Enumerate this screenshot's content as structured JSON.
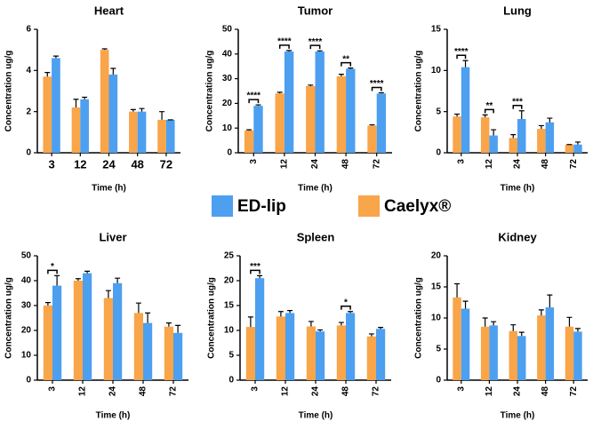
{
  "legend": [
    {
      "name": "ED-lip",
      "color": "#4d9ff0"
    },
    {
      "name": "Caelyx®",
      "color": "#f9a54a"
    }
  ],
  "chart_data": [
    {
      "type": "bar",
      "title": "Heart",
      "xlabel": "Time (h)",
      "ylabel": "Concentration ug/g",
      "categories": [
        "3",
        "12",
        "24",
        "48",
        "72"
      ],
      "ylim": [
        0,
        6
      ],
      "yticks": [
        0,
        2,
        4,
        6
      ],
      "series": [
        {
          "values": [
            4.6,
            2.6,
            3.8,
            2.0,
            1.6
          ],
          "errors": [
            0.1,
            0.1,
            0.3,
            0.15,
            0
          ]
        },
        {
          "values": [
            3.7,
            2.2,
            5.0,
            2.0,
            1.6
          ],
          "errors": [
            0.2,
            0.4,
            0.05,
            0.1,
            0.4
          ]
        }
      ],
      "significance": [
        null,
        null,
        null,
        null,
        null
      ]
    },
    {
      "type": "bar",
      "title": "Tumor",
      "xlabel": "Time (h)",
      "ylabel": "Concentration ug/g",
      "categories": [
        "3",
        "12",
        "24",
        "48",
        "72"
      ],
      "ylim": [
        0,
        50
      ],
      "yticks": [
        0,
        10,
        20,
        30,
        40,
        50
      ],
      "series": [
        {
          "values": [
            19,
            41,
            41,
            34,
            24
          ],
          "errors": [
            0.4,
            0.4,
            0.3,
            0.3,
            0.3
          ]
        },
        {
          "values": [
            9,
            24,
            27,
            31,
            11
          ],
          "errors": [
            0.3,
            0.5,
            0.4,
            0.8,
            0.3
          ]
        }
      ],
      "significance": [
        "****",
        "****",
        "****",
        "**",
        "****"
      ]
    },
    {
      "type": "bar",
      "title": "Lung",
      "xlabel": "Time (h)",
      "ylabel": "Concentration ug/g",
      "categories": [
        "3",
        "12",
        "24",
        "48",
        "72"
      ],
      "ylim": [
        0,
        15
      ],
      "yticks": [
        0,
        5,
        10,
        15
      ],
      "series": [
        {
          "values": [
            10.4,
            2.1,
            4.1,
            3.7,
            1.0
          ],
          "errors": [
            0.8,
            0.7,
            1.0,
            0.5,
            0.3
          ]
        },
        {
          "values": [
            4.4,
            4.3,
            1.8,
            2.9,
            1.0
          ],
          "errors": [
            0.3,
            0.3,
            0.4,
            0.4,
            0
          ]
        }
      ],
      "significance": [
        "****",
        "**",
        "***",
        null,
        null
      ]
    },
    {
      "type": "bar",
      "title": "Liver",
      "xlabel": "Time (h)",
      "ylabel": "Concentration ug/g",
      "categories": [
        "3",
        "12",
        "24",
        "48",
        "72"
      ],
      "ylim": [
        0,
        50
      ],
      "yticks": [
        0,
        10,
        20,
        30,
        40,
        50
      ],
      "series": [
        {
          "values": [
            38,
            43,
            39,
            23,
            19
          ],
          "errors": [
            4,
            0.8,
            2,
            4,
            3
          ]
        },
        {
          "values": [
            30,
            40,
            33,
            27,
            21.5
          ],
          "errors": [
            1.2,
            0.8,
            3,
            4,
            1.5
          ]
        }
      ],
      "significance": [
        "*",
        null,
        null,
        null,
        null
      ]
    },
    {
      "type": "bar",
      "title": "Spleen",
      "xlabel": "Time (h)",
      "ylabel": "Concentration ug/g",
      "categories": [
        "3",
        "12",
        "24",
        "48",
        "72"
      ],
      "ylim": [
        0,
        25
      ],
      "yticks": [
        0,
        5,
        10,
        15,
        20,
        25
      ],
      "series": [
        {
          "values": [
            20.5,
            13.5,
            9.8,
            13.5,
            10.3
          ],
          "errors": [
            0.5,
            0.5,
            0.3,
            0.3,
            0.3
          ]
        },
        {
          "values": [
            10.7,
            12.8,
            10.8,
            11.0,
            8.8
          ],
          "errors": [
            2,
            1,
            1,
            0.6,
            0.5
          ]
        }
      ],
      "significance": [
        "***",
        null,
        null,
        "*",
        null
      ]
    },
    {
      "type": "bar",
      "title": "Kidney",
      "xlabel": "Time (h)",
      "ylabel": "Concentration ug/g",
      "categories": [
        "3",
        "12",
        "24",
        "48",
        "72"
      ],
      "ylim": [
        0,
        20
      ],
      "yticks": [
        0,
        5,
        10,
        15,
        20
      ],
      "series": [
        {
          "values": [
            11.5,
            8.8,
            7.1,
            11.7,
            7.8
          ],
          "errors": [
            1.2,
            0.6,
            0.6,
            2,
            0.5
          ]
        },
        {
          "values": [
            13.3,
            8.6,
            7.9,
            10.4,
            8.6
          ],
          "errors": [
            2.2,
            1.4,
            1,
            0.9,
            1.5
          ]
        }
      ],
      "significance": [
        null,
        null,
        null,
        null,
        null
      ]
    }
  ]
}
